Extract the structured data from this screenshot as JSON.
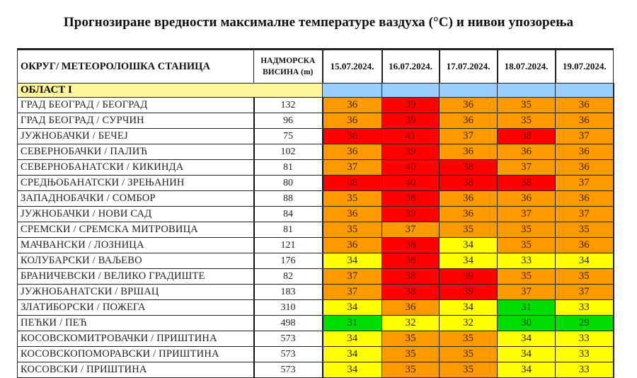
{
  "title": "Прогнозиране вредности максималне температуре ваздуха (°C) и нивои упозорења",
  "header": {
    "station_col": "ОКРУГ/ МЕТЕОРОЛОШКА СТАНИЦА",
    "elevation_line1": "НАДМОРСКА",
    "elevation_line2": "ВИСИНА  (m)",
    "dates": [
      "15.07.2024.",
      "16.07.2024.",
      "17.07.2024.",
      "18.07.2024.",
      "19.07.2024."
    ]
  },
  "region": {
    "label": "ОБЛАСТ I"
  },
  "colors": {
    "red": "#ff0000",
    "orange": "#ff9900",
    "yellow": "#ffff00",
    "green": "#00dd00",
    "region_yellow": "#fff799",
    "region_blue": "#99ccff"
  },
  "rows": [
    {
      "station": "ГРАД БЕОГРАД / БЕОГРАД",
      "elevation": "132",
      "values": [
        "36",
        "39",
        "36",
        "35",
        "36"
      ],
      "levels": [
        "orange",
        "red",
        "orange",
        "orange",
        "orange"
      ]
    },
    {
      "station": "ГРАД БЕОГРАД / СУРЧИН",
      "elevation": "96",
      "values": [
        "36",
        "39",
        "36",
        "35",
        "36"
      ],
      "levels": [
        "orange",
        "red",
        "orange",
        "orange",
        "orange"
      ]
    },
    {
      "station": "ЈУЖНОБАЧКИ / БЕЧЕЈ",
      "elevation": "75",
      "values": [
        "38",
        "41",
        "37",
        "38",
        "37"
      ],
      "levels": [
        "red",
        "red",
        "orange",
        "red",
        "orange"
      ]
    },
    {
      "station": "СЕВЕРНОБАЧКИ / ПАЛИЋ",
      "elevation": "102",
      "values": [
        "36",
        "39",
        "36",
        "36",
        "36"
      ],
      "levels": [
        "orange",
        "red",
        "orange",
        "orange",
        "orange"
      ]
    },
    {
      "station": "СЕВЕРНОБАНАТСКИ / КИКИНДА",
      "elevation": "81",
      "values": [
        "37",
        "40",
        "38",
        "37",
        "36"
      ],
      "levels": [
        "orange",
        "red",
        "red",
        "orange",
        "orange"
      ]
    },
    {
      "station": "СРЕДЊОБАНАТСКИ / ЗРЕЊАНИН",
      "elevation": "80",
      "values": [
        "38",
        "40",
        "38",
        "38",
        "37"
      ],
      "levels": [
        "red",
        "red",
        "red",
        "red",
        "orange"
      ]
    },
    {
      "station": "ЗАПАДНОБАЧКИ / СОМБОР",
      "elevation": "88",
      "values": [
        "35",
        "38",
        "36",
        "36",
        "36"
      ],
      "levels": [
        "orange",
        "red",
        "orange",
        "orange",
        "orange"
      ]
    },
    {
      "station": "ЈУЖНОБАЧКИ / НОВИ САД",
      "elevation": "84",
      "values": [
        "36",
        "39",
        "36",
        "37",
        "37"
      ],
      "levels": [
        "orange",
        "red",
        "orange",
        "orange",
        "orange"
      ]
    },
    {
      "station": "СРЕМСКИ / СРЕМСКА МИТРОВИЦА",
      "elevation": "81",
      "values": [
        "35",
        "37",
        "35",
        "35",
        "35"
      ],
      "levels": [
        "orange",
        "orange",
        "orange",
        "orange",
        "orange"
      ]
    },
    {
      "station": "МАЧВАНСКИ / ЛОЗНИЦА",
      "elevation": "121",
      "values": [
        "36",
        "38",
        "34",
        "35",
        "36"
      ],
      "levels": [
        "orange",
        "red",
        "yellow",
        "orange",
        "orange"
      ]
    },
    {
      "station": "КОЛУБАРСКИ / ВАЉЕВО",
      "elevation": "176",
      "values": [
        "34",
        "38",
        "34",
        "33",
        "34"
      ],
      "levels": [
        "yellow",
        "red",
        "yellow",
        "yellow",
        "yellow"
      ]
    },
    {
      "station": "БРАНИЧЕВСКИ / ВЕЛИКО ГРАДИШТЕ",
      "elevation": "82",
      "values": [
        "37",
        "38",
        "39",
        "35",
        "35"
      ],
      "levels": [
        "orange",
        "red",
        "red",
        "orange",
        "orange"
      ]
    },
    {
      "station": "ЈУЖНОБАНАТСКИ / ВРШАЦ",
      "elevation": "183",
      "values": [
        "37",
        "38",
        "39",
        "37",
        "37"
      ],
      "levels": [
        "orange",
        "red",
        "red",
        "orange",
        "orange"
      ]
    },
    {
      "station": "ЗЛАТИБОРСКИ / ПОЖЕГА",
      "elevation": "310",
      "values": [
        "34",
        "36",
        "34",
        "31",
        "33"
      ],
      "levels": [
        "yellow",
        "orange",
        "yellow",
        "green",
        "yellow"
      ]
    },
    {
      "station": "ПЕЋКИ / ПЕЋ",
      "elevation": "498",
      "values": [
        "31",
        "32",
        "32",
        "30",
        "29"
      ],
      "levels": [
        "green",
        "yellow",
        "yellow",
        "green",
        "green"
      ]
    },
    {
      "station": "КОСОВСКОМИТРОВАЧКИ / ПРИШТИНА",
      "elevation": "573",
      "values": [
        "34",
        "35",
        "35",
        "34",
        "33"
      ],
      "levels": [
        "yellow",
        "orange",
        "orange",
        "yellow",
        "yellow"
      ]
    },
    {
      "station": "КОСОВСКОПОМОРАВСКИ / ПРИШТИНА",
      "elevation": "573",
      "values": [
        "34",
        "35",
        "35",
        "34",
        "33"
      ],
      "levels": [
        "yellow",
        "orange",
        "orange",
        "yellow",
        "yellow"
      ]
    },
    {
      "station": "КОСОВСКИ / ПРИШТИНА",
      "elevation": "573",
      "values": [
        "34",
        "35",
        "35",
        "34",
        "33"
      ],
      "levels": [
        "yellow",
        "orange",
        "orange",
        "yellow",
        "yellow"
      ]
    }
  ]
}
